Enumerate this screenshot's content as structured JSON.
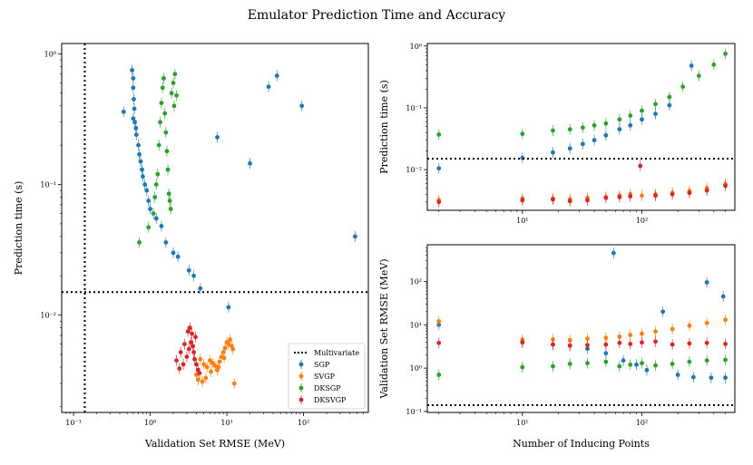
{
  "figure": {
    "title": "Emulator Prediction Time and Accuracy"
  },
  "colors": {
    "SGP": "#1f77b4",
    "SVGP": "#ff7f0e",
    "DKSGP": "#2ca02c",
    "DKSVGP": "#d62728",
    "reference": "#000000"
  },
  "chart_data": [
    {
      "id": "time-vs-rmse",
      "type": "scatter",
      "xlabel": "Validation Set RMSE (MeV)",
      "ylabel": "Prediction time (s)",
      "xscale": "log",
      "yscale": "log",
      "xlim": [
        0.07,
        700
      ],
      "ylim": [
        0.0018,
        1.2
      ],
      "xticks": [
        0.1,
        1,
        10,
        100
      ],
      "xtick_labels": [
        "10⁻¹",
        "10⁰",
        "10¹",
        "10²"
      ],
      "yticks": [
        0.01,
        0.1,
        1
      ],
      "ytick_labels": [
        "10⁻²",
        "10⁻¹",
        "10⁰"
      ],
      "hline": {
        "y": 0.015,
        "label": "Multivariate"
      },
      "vline": {
        "x": 0.14
      },
      "legend": {
        "position": "bottom-right",
        "entries": [
          "Multivariate",
          "SGP",
          "SVGP",
          "DKSGP",
          "DKSVGP"
        ]
      },
      "series": [
        {
          "name": "SGP",
          "color": "#1f77b4",
          "points": [
            [
              0.45,
              0.36
            ],
            [
              0.58,
              0.75
            ],
            [
              0.6,
              0.65
            ],
            [
              0.6,
              0.55
            ],
            [
              0.61,
              0.45
            ],
            [
              0.62,
              0.38
            ],
            [
              0.6,
              0.32
            ],
            [
              0.63,
              0.3
            ],
            [
              0.65,
              0.27
            ],
            [
              0.66,
              0.24
            ],
            [
              0.7,
              0.2
            ],
            [
              0.72,
              0.17
            ],
            [
              0.75,
              0.15
            ],
            [
              0.78,
              0.13
            ],
            [
              0.8,
              0.115
            ],
            [
              0.85,
              0.1
            ],
            [
              0.9,
              0.09
            ],
            [
              0.95,
              0.075
            ],
            [
              1.0,
              0.065
            ],
            [
              1.2,
              0.055
            ],
            [
              1.4,
              0.048
            ],
            [
              1.6,
              0.036
            ],
            [
              2.0,
              0.03
            ],
            [
              2.3,
              0.028
            ],
            [
              3.2,
              0.022
            ],
            [
              3.7,
              0.02
            ],
            [
              4.5,
              0.016
            ],
            [
              7.5,
              0.23
            ],
            [
              20,
              0.145
            ],
            [
              35,
              0.56
            ],
            [
              45,
              0.68
            ],
            [
              95,
              0.4
            ],
            [
              470,
              0.04
            ],
            [
              10.5,
              0.0115
            ]
          ]
        },
        {
          "name": "SVGP",
          "color": "#ff7f0e",
          "points": [
            [
              4.5,
              0.0046
            ],
            [
              5,
              0.0042
            ],
            [
              5.5,
              0.004
            ],
            [
              6,
              0.0045
            ],
            [
              6.5,
              0.0043
            ],
            [
              7,
              0.0041
            ],
            [
              7.5,
              0.0038
            ],
            [
              8,
              0.0044
            ],
            [
              8.5,
              0.0048
            ],
            [
              9,
              0.0052
            ],
            [
              9.5,
              0.0056
            ],
            [
              10,
              0.0062
            ],
            [
              10.5,
              0.006
            ],
            [
              11,
              0.0065
            ],
            [
              11.5,
              0.0058
            ],
            [
              12,
              0.0055
            ],
            [
              4,
              0.0035
            ],
            [
              4.2,
              0.0032
            ],
            [
              4.8,
              0.0031
            ],
            [
              5.3,
              0.0033
            ],
            [
              12.5,
              0.003
            ],
            [
              6.2,
              0.0037
            ],
            [
              7.8,
              0.004
            ],
            [
              9.2,
              0.0047
            ]
          ]
        },
        {
          "name": "DKSGP",
          "color": "#2ca02c",
          "points": [
            [
              0.72,
              0.036
            ],
            [
              0.95,
              0.047
            ],
            [
              1.1,
              0.06
            ],
            [
              1.2,
              0.1
            ],
            [
              1.3,
              0.2
            ],
            [
              1.35,
              0.3
            ],
            [
              1.4,
              0.42
            ],
            [
              1.45,
              0.55
            ],
            [
              1.5,
              0.65
            ],
            [
              1.55,
              0.35
            ],
            [
              1.6,
              0.25
            ],
            [
              1.65,
              0.18
            ],
            [
              1.7,
              0.13
            ],
            [
              1.75,
              0.085
            ],
            [
              1.8,
              0.075
            ],
            [
              1.9,
              0.5
            ],
            [
              2.0,
              0.6
            ],
            [
              2.1,
              0.7
            ],
            [
              2.2,
              0.48
            ],
            [
              1.85,
              0.065
            ],
            [
              1.25,
              0.12
            ],
            [
              1.15,
              0.08
            ],
            [
              2.05,
              0.4
            ]
          ]
        },
        {
          "name": "DKSVGP",
          "color": "#d62728",
          "points": [
            [
              2.2,
              0.0045
            ],
            [
              2.5,
              0.0052
            ],
            [
              2.8,
              0.006
            ],
            [
              3.0,
              0.0048
            ],
            [
              3.2,
              0.0055
            ],
            [
              3.4,
              0.0062
            ],
            [
              3.5,
              0.0072
            ],
            [
              3.6,
              0.0058
            ],
            [
              3.7,
              0.0052
            ],
            [
              3.8,
              0.0046
            ],
            [
              3.9,
              0.0068
            ],
            [
              4.0,
              0.0042
            ],
            [
              4.2,
              0.0038
            ],
            [
              4.4,
              0.0036
            ],
            [
              2.4,
              0.0039
            ],
            [
              2.7,
              0.0042
            ],
            [
              3.1,
              0.0075
            ],
            [
              3.3,
              0.008
            ]
          ]
        }
      ]
    },
    {
      "id": "time-vs-inducing",
      "type": "scatter",
      "xlabel": "",
      "ylabel": "Prediction time (s)",
      "xscale": "log",
      "yscale": "log",
      "xlim": [
        1.6,
        600
      ],
      "ylim": [
        0.0022,
        1.1
      ],
      "xticks": [
        10,
        100
      ],
      "xtick_labels": [
        "10¹",
        "10²"
      ],
      "yticks": [
        0.01,
        0.1,
        1
      ],
      "ytick_labels": [
        "10⁻²",
        "10⁻¹",
        "10⁰"
      ],
      "hline": {
        "y": 0.015
      },
      "series": [
        {
          "name": "SGP",
          "color": "#1f77b4",
          "points": [
            [
              2,
              0.0105
            ],
            [
              10,
              0.0155
            ],
            [
              18,
              0.019
            ],
            [
              25,
              0.022
            ],
            [
              32,
              0.026
            ],
            [
              40,
              0.03
            ],
            [
              50,
              0.036
            ],
            [
              65,
              0.045
            ],
            [
              80,
              0.052
            ],
            [
              100,
              0.065
            ],
            [
              130,
              0.08
            ],
            [
              170,
              0.11
            ],
            [
              260,
              0.48
            ]
          ]
        },
        {
          "name": "SVGP",
          "color": "#ff7f0e",
          "points": [
            [
              2,
              0.0032
            ],
            [
              10,
              0.0034
            ],
            [
              18,
              0.0034
            ],
            [
              25,
              0.0033
            ],
            [
              35,
              0.0035
            ],
            [
              50,
              0.0036
            ],
            [
              65,
              0.0038
            ],
            [
              80,
              0.004
            ],
            [
              100,
              0.0038
            ],
            [
              130,
              0.004
            ],
            [
              180,
              0.0042
            ],
            [
              250,
              0.0045
            ],
            [
              350,
              0.005
            ],
            [
              500,
              0.0058
            ]
          ]
        },
        {
          "name": "DKSGP",
          "color": "#2ca02c",
          "points": [
            [
              2,
              0.037
            ],
            [
              10,
              0.038
            ],
            [
              18,
              0.043
            ],
            [
              25,
              0.045
            ],
            [
              32,
              0.048
            ],
            [
              40,
              0.052
            ],
            [
              50,
              0.056
            ],
            [
              65,
              0.065
            ],
            [
              80,
              0.075
            ],
            [
              100,
              0.09
            ],
            [
              130,
              0.115
            ],
            [
              170,
              0.15
            ],
            [
              220,
              0.22
            ],
            [
              300,
              0.33
            ],
            [
              400,
              0.5
            ],
            [
              500,
              0.75
            ]
          ]
        },
        {
          "name": "DKSVGP",
          "color": "#d62728",
          "points": [
            [
              2,
              0.003
            ],
            [
              10,
              0.0032
            ],
            [
              18,
              0.0033
            ],
            [
              25,
              0.0031
            ],
            [
              35,
              0.0032
            ],
            [
              50,
              0.0035
            ],
            [
              65,
              0.0036
            ],
            [
              80,
              0.0037
            ],
            [
              97,
              0.0115
            ],
            [
              130,
              0.0038
            ],
            [
              180,
              0.004
            ],
            [
              250,
              0.0042
            ],
            [
              350,
              0.0046
            ],
            [
              500,
              0.0055
            ]
          ]
        }
      ]
    },
    {
      "id": "rmse-vs-inducing",
      "type": "scatter",
      "xlabel": "Number of Inducing Points",
      "ylabel": "Validation Set RMSE (MeV)",
      "xscale": "log",
      "yscale": "log",
      "xlim": [
        1.6,
        600
      ],
      "ylim": [
        0.095,
        700
      ],
      "xticks": [
        10,
        100
      ],
      "xtick_labels": [
        "10¹",
        "10²"
      ],
      "yticks": [
        0.1,
        1,
        10,
        100
      ],
      "ytick_labels": [
        "10⁻¹",
        "10⁰",
        "10¹",
        "10²"
      ],
      "hline": {
        "y": 0.14
      },
      "series": [
        {
          "name": "SGP",
          "color": "#1f77b4",
          "points": [
            [
              2,
              10
            ],
            [
              10,
              4
            ],
            [
              18,
              3.5
            ],
            [
              25,
              3.3
            ],
            [
              35,
              2.8
            ],
            [
              50,
              2.2
            ],
            [
              58,
              450
            ],
            [
              70,
              1.5
            ],
            [
              90,
              1.2
            ],
            [
              110,
              0.9
            ],
            [
              150,
              20
            ],
            [
              200,
              0.7
            ],
            [
              350,
              95
            ],
            [
              270,
              0.62
            ],
            [
              380,
              0.6
            ],
            [
              480,
              45
            ],
            [
              500,
              0.6
            ]
          ]
        },
        {
          "name": "SVGP",
          "color": "#ff7f0e",
          "points": [
            [
              2,
              12
            ],
            [
              10,
              4.5
            ],
            [
              18,
              4.6
            ],
            [
              25,
              4.4
            ],
            [
              35,
              4.8
            ],
            [
              50,
              5
            ],
            [
              65,
              5.3
            ],
            [
              80,
              5.8
            ],
            [
              100,
              6.2
            ],
            [
              130,
              7
            ],
            [
              180,
              8
            ],
            [
              250,
              9.5
            ],
            [
              350,
              11
            ],
            [
              500,
              13
            ]
          ]
        },
        {
          "name": "DKSGP",
          "color": "#2ca02c",
          "points": [
            [
              2,
              0.7
            ],
            [
              10,
              1.05
            ],
            [
              18,
              1.1
            ],
            [
              25,
              1.25
            ],
            [
              35,
              1.3
            ],
            [
              50,
              1.4
            ],
            [
              65,
              1.1
            ],
            [
              80,
              1.2
            ],
            [
              100,
              1.3
            ],
            [
              130,
              1.15
            ],
            [
              180,
              1.25
            ],
            [
              250,
              1.4
            ],
            [
              350,
              1.5
            ],
            [
              500,
              1.55
            ]
          ]
        },
        {
          "name": "DKSVGP",
          "color": "#d62728",
          "points": [
            [
              2,
              3.8
            ],
            [
              10,
              3.9
            ],
            [
              18,
              3.5
            ],
            [
              25,
              3.3
            ],
            [
              35,
              3.4
            ],
            [
              50,
              3.5
            ],
            [
              65,
              3.8
            ],
            [
              80,
              3.6
            ],
            [
              100,
              3.9
            ],
            [
              130,
              4.1
            ],
            [
              180,
              3.5
            ],
            [
              250,
              3.7
            ],
            [
              350,
              3.8
            ],
            [
              500,
              3.6
            ]
          ]
        }
      ]
    }
  ]
}
